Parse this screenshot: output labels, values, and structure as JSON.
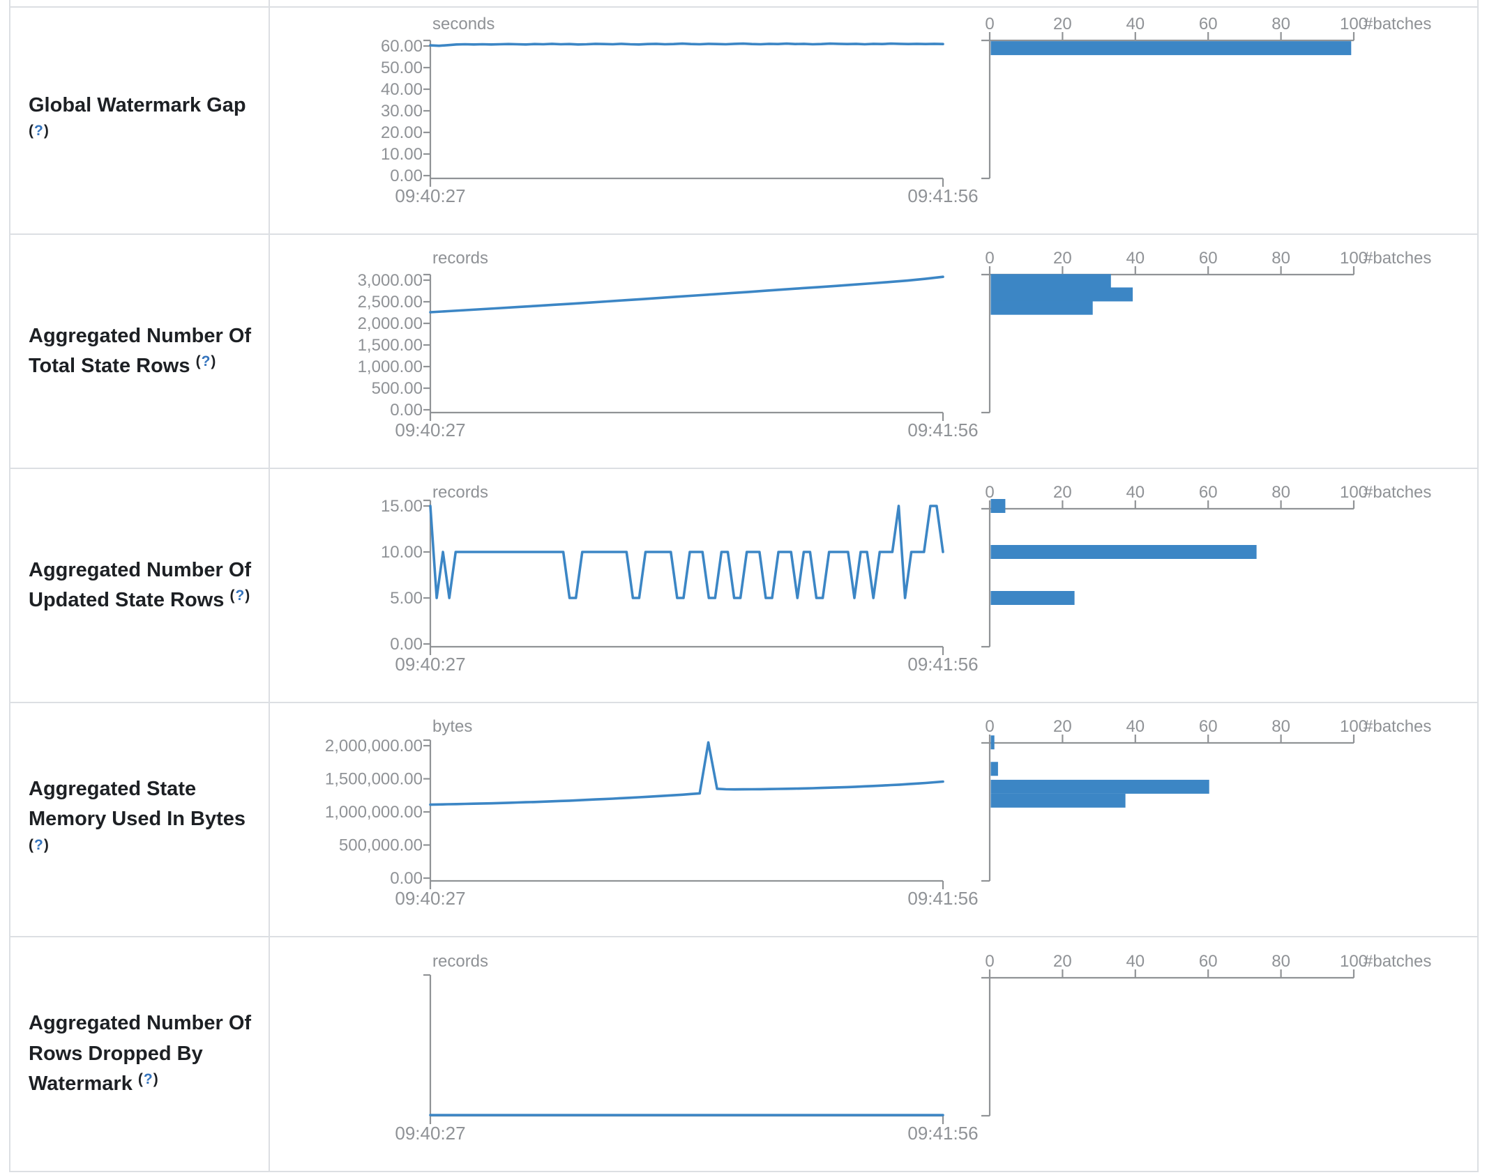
{
  "page": {
    "time_start": "09:40:27",
    "time_end": "09:41:56",
    "batches_label": "#batches",
    "hist_ticks": [
      "0",
      "20",
      "40",
      "60",
      "80",
      "100"
    ],
    "help_open": "(",
    "help_q": "?",
    "help_close": ")"
  },
  "colors": {
    "accent_blue": "#3c86c5",
    "axis_gray": "#909396",
    "label_gray": "#8f9296",
    "title_dark": "#1d2024",
    "help_blue": "#3574bd",
    "border_gray": "#dcdfe3"
  },
  "chart_data": [
    {
      "title": "Global Watermark Gap",
      "help": "(?)",
      "type": "line+histogram",
      "unit": "seconds",
      "y_ticks": [
        "60.00",
        "50.00",
        "40.00",
        "30.00",
        "20.00",
        "10.00",
        "0.00"
      ],
      "x_ticks": [
        "09:40:27",
        "09:41:56"
      ],
      "line_values": [
        60.3,
        60.1,
        60.4,
        60.7,
        60.8,
        60.7,
        60.8,
        60.7,
        60.8,
        60.9,
        60.8,
        60.7,
        60.9,
        60.8,
        61.0,
        60.8,
        60.9,
        60.7,
        60.8,
        61.0,
        60.9,
        60.8,
        61.0,
        60.8,
        60.7,
        60.9,
        61.0,
        60.8,
        60.9,
        61.1,
        60.9,
        60.8,
        61.0,
        60.9,
        60.8,
        61.0,
        61.1,
        60.9,
        60.8,
        61.0,
        60.9,
        61.1,
        60.9,
        61.0,
        60.8,
        60.9,
        61.1,
        61.0,
        60.9,
        61.0,
        60.8,
        61.0,
        60.9,
        61.1,
        61.0,
        60.9,
        61.0,
        60.9,
        61.0,
        60.9
      ],
      "histogram": {
        "x_label": "#batches",
        "bars": [
          {
            "value": 59,
            "count": 99
          }
        ]
      }
    },
    {
      "title": "Aggregated Number Of Total State Rows",
      "help": "(?)",
      "type": "line+histogram",
      "unit": "records",
      "y_ticks": [
        "3,000.00",
        "2,500.00",
        "2,000.00",
        "1,500.00",
        "1,000.00",
        "500.00",
        "0.00"
      ],
      "x_ticks": [
        "09:40:27",
        "09:41:56"
      ],
      "line_values": [
        2258,
        2282,
        2306,
        2330,
        2355,
        2380,
        2405,
        2430,
        2455,
        2480,
        2508,
        2535,
        2562,
        2590,
        2618,
        2645,
        2672,
        2700,
        2728,
        2756,
        2785,
        2813,
        2840,
        2868,
        2898,
        2928,
        2958,
        2990,
        3030,
        3078
      ],
      "histogram": {
        "x_label": "#batches",
        "bars": [
          {
            "value": 2980,
            "count": 33
          },
          {
            "value": 2670,
            "count": 39
          },
          {
            "value": 2360,
            "count": 28
          }
        ]
      }
    },
    {
      "title": "Aggregated Number Of Updated State Rows",
      "help": "(?)",
      "type": "line+histogram",
      "unit": "records",
      "y_ticks": [
        "15.00",
        "10.00",
        "5.00",
        "0.00"
      ],
      "x_ticks": [
        "09:40:27",
        "09:41:56"
      ],
      "line_values": [
        15,
        5,
        10,
        5,
        10,
        10,
        10,
        10,
        10,
        10,
        10,
        10,
        10,
        10,
        10,
        10,
        10,
        10,
        10,
        10,
        10,
        10,
        5,
        5,
        10,
        10,
        10,
        10,
        10,
        10,
        10,
        10,
        5,
        5,
        10,
        10,
        10,
        10,
        10,
        5,
        5,
        10,
        10,
        10,
        5,
        5,
        10,
        10,
        5,
        5,
        10,
        10,
        10,
        5,
        5,
        10,
        10,
        10,
        5,
        10,
        10,
        5,
        5,
        10,
        10,
        10,
        10,
        5,
        10,
        10,
        5,
        10,
        10,
        10,
        15,
        5,
        10,
        10,
        10,
        15,
        15,
        10
      ],
      "histogram": {
        "x_label": "#batches",
        "bars": [
          {
            "value": 15,
            "count": 4
          },
          {
            "value": 10,
            "count": 73
          },
          {
            "value": 5,
            "count": 23
          }
        ]
      }
    },
    {
      "title": "Aggregated State Memory Used In Bytes",
      "help": "(?)",
      "type": "line+histogram",
      "unit": "bytes",
      "y_ticks": [
        "2,000,000.00",
        "1,500,000.00",
        "1,000,000.00",
        "500,000.00",
        "0.00"
      ],
      "x_ticks": [
        "09:40:27",
        "09:41:56"
      ],
      "line_values": [
        1110000,
        1113000,
        1116000,
        1118000,
        1121000,
        1124000,
        1127000,
        1130000,
        1134000,
        1138000,
        1142000,
        1146000,
        1150000,
        1155000,
        1160000,
        1165000,
        1170000,
        1176000,
        1182000,
        1188000,
        1194000,
        1200000,
        1207000,
        1214000,
        1221000,
        1228000,
        1236000,
        1244000,
        1252000,
        1260000,
        1270000,
        1280000,
        2050000,
        1350000,
        1342000,
        1340000,
        1341000,
        1342000,
        1343000,
        1345000,
        1347000,
        1349000,
        1352000,
        1355000,
        1358000,
        1362000,
        1366000,
        1370000,
        1375000,
        1380000,
        1386000,
        1392000,
        1398000,
        1405000,
        1412000,
        1420000,
        1428000,
        1437000,
        1447000,
        1458000
      ],
      "histogram": {
        "x_label": "#batches",
        "bars": [
          {
            "value": 2050000,
            "count": 1
          },
          {
            "value": 1650000,
            "count": 2
          },
          {
            "value": 1380000,
            "count": 60
          },
          {
            "value": 1170000,
            "count": 37
          }
        ]
      }
    },
    {
      "title": "Aggregated Number Of Rows Dropped By Watermark",
      "help": "(?)",
      "type": "line+histogram",
      "unit": "records",
      "y_ticks": [],
      "x_ticks": [
        "09:40:27",
        "09:41:56"
      ],
      "line_values": [
        0,
        0
      ],
      "histogram": {
        "x_label": "#batches",
        "bars": []
      }
    }
  ]
}
